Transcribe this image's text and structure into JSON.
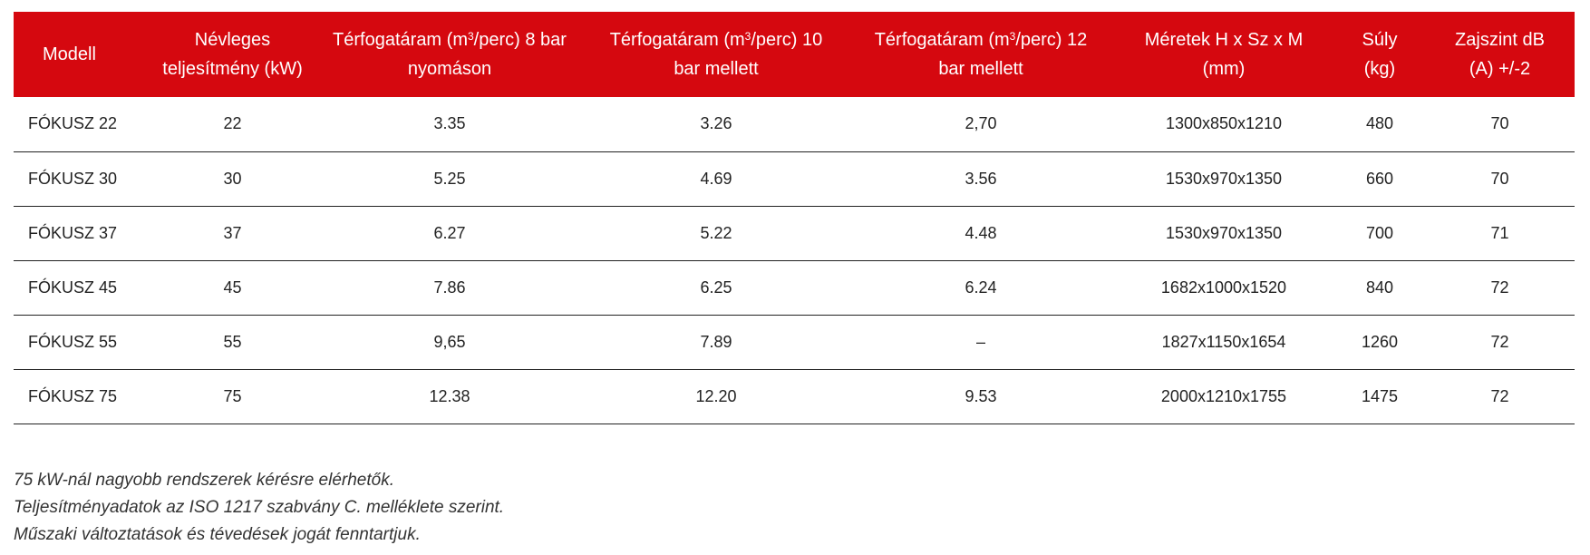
{
  "table": {
    "headers": [
      {
        "line1": "Modell",
        "line2": ""
      },
      {
        "line1": "Névleges",
        "line2": "teljesítmény (kW)"
      },
      {
        "line1": "Térfogatáram (m",
        "sup": "3",
        "line1b": "/perc) 8 bar",
        "line2": "nyomáson"
      },
      {
        "line1": "Térfogatáram (m",
        "sup": "3",
        "line1b": "/perc) 10",
        "line2": "bar mellett"
      },
      {
        "line1": "Térfogatáram (m",
        "sup": "3",
        "line1b": "/perc) 12",
        "line2": "bar mellett"
      },
      {
        "line1": "Méretek H x Sz x M",
        "line2": "(mm)"
      },
      {
        "line1": "Súly",
        "line2": "(kg)"
      },
      {
        "line1": "Zajszint dB",
        "line2": "(A) +/-2"
      }
    ],
    "rows": [
      [
        "FÓKUSZ 22",
        "22",
        "3.35",
        "3.26",
        "2,70",
        "1300x850x1210",
        "480",
        "70"
      ],
      [
        "FÓKUSZ 30",
        "30",
        "5.25",
        "4.69",
        "3.56",
        "1530x970x1350",
        "660",
        "70"
      ],
      [
        "FÓKUSZ 37",
        "37",
        "6.27",
        "5.22",
        "4.48",
        "1530x970x1350",
        "700",
        "71"
      ],
      [
        "FÓKUSZ 45",
        "45",
        "7.86",
        "6.25",
        "6.24",
        "1682x1000x1520",
        "840",
        "72"
      ],
      [
        "FÓKUSZ 55",
        "55",
        "9,65",
        "7.89",
        "–",
        "1827x1150x1654",
        "1260",
        "72"
      ],
      [
        "FÓKUSZ 75",
        "75",
        "12.38",
        "12.20",
        "9.53",
        "2000x1210x1755",
        "1475",
        "72"
      ]
    ]
  },
  "notes": [
    "75 kW-nál nagyobb rendszerek kérésre elérhetők.",
    "Teljesítményadatok az ISO 1217 szabvány C. melléklete szerint.",
    "Műszaki változtatások és tévedések jogát fenntartjuk."
  ],
  "colors": {
    "header_bg": "#d5080f",
    "header_text": "#ffffff",
    "row_border": "#222222"
  }
}
